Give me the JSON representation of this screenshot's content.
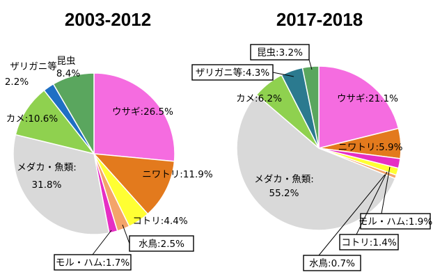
{
  "chart_data": [
    {
      "type": "pie",
      "title": "2003-2012",
      "slices": [
        {
          "label": "ウサギ",
          "value": 26.5,
          "color": "#f56ce0"
        },
        {
          "label": "ニワトリ",
          "value": 11.9,
          "color": "#e37a1d"
        },
        {
          "label": "コトリ",
          "value": 4.4,
          "color": "#ffff33"
        },
        {
          "label": "水鳥",
          "value": 2.5,
          "color": "#f4a46a"
        },
        {
          "label": "モル・ハム",
          "value": 1.7,
          "color": "#e62ec4"
        },
        {
          "label": "メダカ・魚類",
          "value": 31.8,
          "color": "#d9d9d9"
        },
        {
          "label": "カメ",
          "value": 10.6,
          "color": "#8fd14f"
        },
        {
          "label": "ザリガニ等",
          "value": 2.2,
          "color": "#1f6fc4"
        },
        {
          "label": "昆虫",
          "value": 8.4,
          "color": "#5aa65e"
        }
      ],
      "labels": {
        "rabbit": "ウサギ:26.5%",
        "chicken": "ニワトリ:11.9%",
        "bird": "コトリ:4.4%",
        "waterfowl": "水鳥:2.5%",
        "molham": "モル・ハム:1.7%",
        "fish_name": "メダカ・魚類:",
        "fish_value": "31.8%",
        "turtle": "カメ:10.6%",
        "crayfish_name": "ザリガニ等",
        "crayfish_value": "2.2%",
        "insect_name": "昆虫",
        "insect_value": "8.4%"
      }
    },
    {
      "type": "pie",
      "title": "2017-2018",
      "slices": [
        {
          "label": "ウサギ",
          "value": 21.1,
          "color": "#f56ce0"
        },
        {
          "label": "ニワトリ",
          "value": 5.9,
          "color": "#e37a1d"
        },
        {
          "label": "モル・ハム",
          "value": 1.9,
          "color": "#e62ec4"
        },
        {
          "label": "コトリ",
          "value": 1.4,
          "color": "#ffff33"
        },
        {
          "label": "水鳥",
          "value": 0.7,
          "color": "#f4a46a"
        },
        {
          "label": "メダカ・魚類",
          "value": 55.2,
          "color": "#d9d9d9"
        },
        {
          "label": "カメ",
          "value": 6.2,
          "color": "#8fd14f"
        },
        {
          "label": "ザリガニ等",
          "value": 4.3,
          "color": "#2b7a8f"
        },
        {
          "label": "昆虫",
          "value": 3.2,
          "color": "#5aa65e"
        }
      ],
      "labels": {
        "insect": "昆虫:3.2%",
        "crayfish": "ザリガニ等:4.3%",
        "turtle": "カメ:6.2%",
        "rabbit": "ウサギ:21.1%",
        "chicken": "ニワトリ:5.9%",
        "fish_name": "メダカ・魚類:",
        "fish_value": "55.2%",
        "molham": "モル・ハム:1.9%",
        "bird": "コトリ:1.4%",
        "waterfowl": "水鳥:0.7%"
      }
    }
  ]
}
